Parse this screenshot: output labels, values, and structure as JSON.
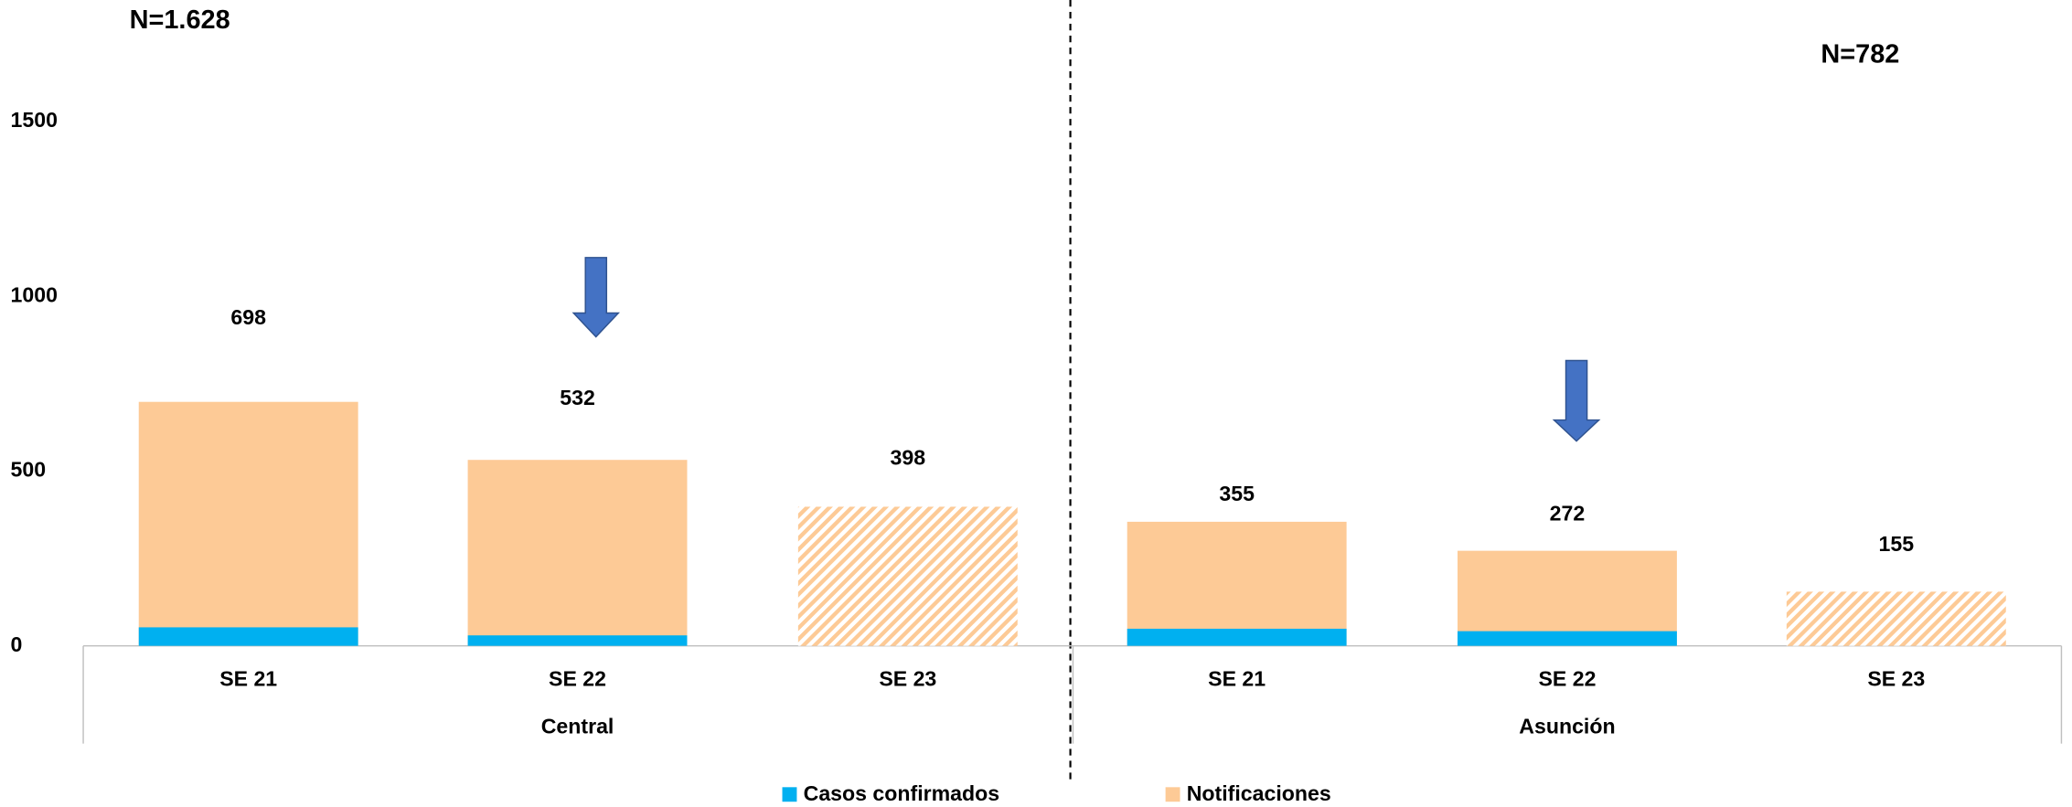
{
  "chart_data": {
    "type": "bar",
    "annotations": [
      "N=1.628",
      "N=782"
    ],
    "groups": [
      "Central",
      "Asunción"
    ],
    "categories": [
      "SE 21",
      "SE 22",
      "SE 23",
      "SE 21",
      "SE 22",
      "SE 23"
    ],
    "series": [
      {
        "name": "Casos confirmados",
        "color": "#00b0f0",
        "values": [
          53,
          30,
          null,
          49,
          42,
          null
        ]
      },
      {
        "name": "Notificaciones",
        "color": "#fdca96",
        "values": [
          698,
          532,
          398,
          355,
          272,
          155
        ],
        "hatch": [
          false,
          false,
          true,
          false,
          false,
          true
        ]
      }
    ],
    "ylim": [
      0,
      1500
    ],
    "yticks": [
      0,
      500,
      1000,
      1500
    ],
    "grid": false,
    "legend": "bottom"
  }
}
